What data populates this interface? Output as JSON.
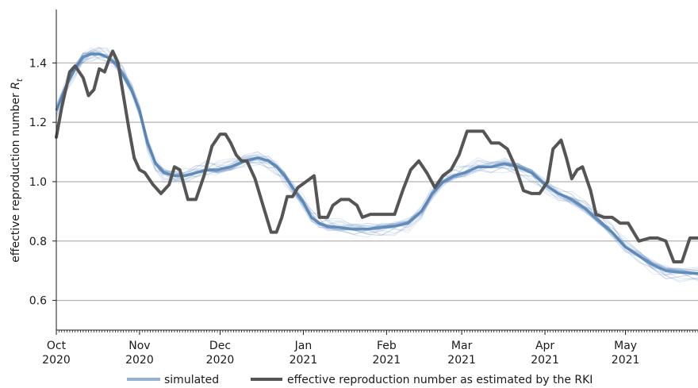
{
  "chart_data": {
    "type": "line",
    "title": "",
    "xlabel": "",
    "ylabel": "effective reproduction number",
    "ylabel_symbol": "R",
    "ylabel_subscript": "t",
    "x_range": [
      "2020-10-01",
      "2021-05-28"
    ],
    "ylim": [
      0.5,
      1.58
    ],
    "y_ticks": [
      0.6,
      0.8,
      1.0,
      1.2,
      1.4
    ],
    "y_tick_labels": [
      "0.6",
      "0.8",
      "1.0",
      "1.2",
      "1.4"
    ],
    "x_ticks": [
      {
        "date": "2020-10-01",
        "month": "Oct",
        "year": "2020"
      },
      {
        "date": "2020-11-01",
        "month": "Nov",
        "year": "2020"
      },
      {
        "date": "2020-12-01",
        "month": "Dec",
        "year": "2020"
      },
      {
        "date": "2021-01-01",
        "month": "Jan",
        "year": "2021"
      },
      {
        "date": "2021-02-01",
        "month": "Feb",
        "year": "2021"
      },
      {
        "date": "2021-03-01",
        "month": "Mar",
        "year": "2021"
      },
      {
        "date": "2021-04-01",
        "month": "Apr",
        "year": "2021"
      },
      {
        "date": "2021-05-01",
        "month": "May",
        "year": "2021"
      }
    ],
    "grid": "horizontal",
    "legend_position": "bottom",
    "series": [
      {
        "name": "simulated",
        "color": "#4f7cb0",
        "ensemble": true,
        "x": [
          "2020-10-01",
          "2020-10-05",
          "2020-10-08",
          "2020-10-11",
          "2020-10-14",
          "2020-10-17",
          "2020-10-20",
          "2020-10-23",
          "2020-10-26",
          "2020-10-29",
          "2020-11-01",
          "2020-11-04",
          "2020-11-07",
          "2020-11-10",
          "2020-11-14",
          "2020-11-18",
          "2020-11-22",
          "2020-11-26",
          "2020-11-30",
          "2020-12-05",
          "2020-12-10",
          "2020-12-15",
          "2020-12-19",
          "2020-12-22",
          "2020-12-25",
          "2020-12-28",
          "2021-01-01",
          "2021-01-04",
          "2021-01-07",
          "2021-01-10",
          "2021-01-15",
          "2021-01-20",
          "2021-01-25",
          "2021-01-30",
          "2021-02-04",
          "2021-02-09",
          "2021-02-14",
          "2021-02-18",
          "2021-02-22",
          "2021-02-26",
          "2021-03-02",
          "2021-03-07",
          "2021-03-12",
          "2021-03-17",
          "2021-03-22",
          "2021-03-27",
          "2021-04-01",
          "2021-04-06",
          "2021-04-11",
          "2021-04-16",
          "2021-04-21",
          "2021-04-26",
          "2021-05-01",
          "2021-05-06",
          "2021-05-11",
          "2021-05-16",
          "2021-05-21",
          "2021-05-28"
        ],
        "values": [
          1.24,
          1.33,
          1.38,
          1.42,
          1.43,
          1.43,
          1.42,
          1.4,
          1.36,
          1.31,
          1.24,
          1.13,
          1.06,
          1.03,
          1.02,
          1.02,
          1.03,
          1.04,
          1.04,
          1.05,
          1.07,
          1.08,
          1.07,
          1.05,
          1.02,
          0.98,
          0.93,
          0.88,
          0.86,
          0.85,
          0.845,
          0.84,
          0.84,
          0.845,
          0.85,
          0.86,
          0.9,
          0.96,
          1.0,
          1.02,
          1.03,
          1.05,
          1.05,
          1.06,
          1.05,
          1.03,
          0.99,
          0.96,
          0.94,
          0.91,
          0.87,
          0.83,
          0.78,
          0.75,
          0.72,
          0.7,
          0.695,
          0.69
        ]
      },
      {
        "name": "effective reproduction number as estimated by the RKI",
        "color": "#555555",
        "x": [
          "2020-10-01",
          "2020-10-03",
          "2020-10-06",
          "2020-10-08",
          "2020-10-11",
          "2020-10-13",
          "2020-10-15",
          "2020-10-17",
          "2020-10-19",
          "2020-10-21",
          "2020-10-22",
          "2020-10-24",
          "2020-10-26",
          "2020-10-28",
          "2020-10-30",
          "2020-11-01",
          "2020-11-03",
          "2020-11-06",
          "2020-11-09",
          "2020-11-12",
          "2020-11-14",
          "2020-11-16",
          "2020-11-19",
          "2020-11-22",
          "2020-11-25",
          "2020-11-28",
          "2020-12-01",
          "2020-12-03",
          "2020-12-05",
          "2020-12-07",
          "2020-12-09",
          "2020-12-11",
          "2020-12-14",
          "2020-12-17",
          "2020-12-20",
          "2020-12-22",
          "2020-12-24",
          "2020-12-26",
          "2020-12-28",
          "2020-12-30",
          "2021-01-02",
          "2021-01-05",
          "2021-01-07",
          "2021-01-10",
          "2021-01-12",
          "2021-01-15",
          "2021-01-18",
          "2021-01-21",
          "2021-01-23",
          "2021-01-26",
          "2021-01-29",
          "2021-02-01",
          "2021-02-04",
          "2021-02-07",
          "2021-02-10",
          "2021-02-13",
          "2021-02-16",
          "2021-02-19",
          "2021-02-22",
          "2021-02-25",
          "2021-02-28",
          "2021-03-03",
          "2021-03-06",
          "2021-03-09",
          "2021-03-12",
          "2021-03-15",
          "2021-03-18",
          "2021-03-21",
          "2021-03-24",
          "2021-03-27",
          "2021-03-30",
          "2021-04-02",
          "2021-04-04",
          "2021-04-07",
          "2021-04-09",
          "2021-04-11",
          "2021-04-13",
          "2021-04-15",
          "2021-04-18",
          "2021-04-20",
          "2021-04-23",
          "2021-04-26",
          "2021-04-29",
          "2021-05-02",
          "2021-05-06",
          "2021-05-10",
          "2021-05-13",
          "2021-05-16",
          "2021-05-19",
          "2021-05-22",
          "2021-05-25",
          "2021-05-28"
        ],
        "values": [
          1.15,
          1.25,
          1.37,
          1.39,
          1.35,
          1.29,
          1.31,
          1.38,
          1.37,
          1.42,
          1.44,
          1.4,
          1.29,
          1.18,
          1.08,
          1.04,
          1.03,
          0.99,
          0.96,
          0.99,
          1.05,
          1.04,
          0.94,
          0.94,
          1.02,
          1.12,
          1.16,
          1.16,
          1.13,
          1.09,
          1.07,
          1.07,
          1.01,
          0.92,
          0.83,
          0.83,
          0.88,
          0.95,
          0.95,
          0.98,
          1.0,
          1.02,
          0.88,
          0.88,
          0.92,
          0.94,
          0.94,
          0.92,
          0.88,
          0.89,
          0.89,
          0.89,
          0.89,
          0.97,
          1.04,
          1.07,
          1.03,
          0.98,
          1.02,
          1.04,
          1.09,
          1.17,
          1.17,
          1.17,
          1.13,
          1.13,
          1.11,
          1.05,
          0.97,
          0.96,
          0.96,
          1.0,
          1.11,
          1.14,
          1.08,
          1.01,
          1.04,
          1.05,
          0.97,
          0.89,
          0.88,
          0.88,
          0.86,
          0.86,
          0.8,
          0.81,
          0.81,
          0.8,
          0.73,
          0.73,
          0.81,
          0.81
        ]
      }
    ]
  }
}
